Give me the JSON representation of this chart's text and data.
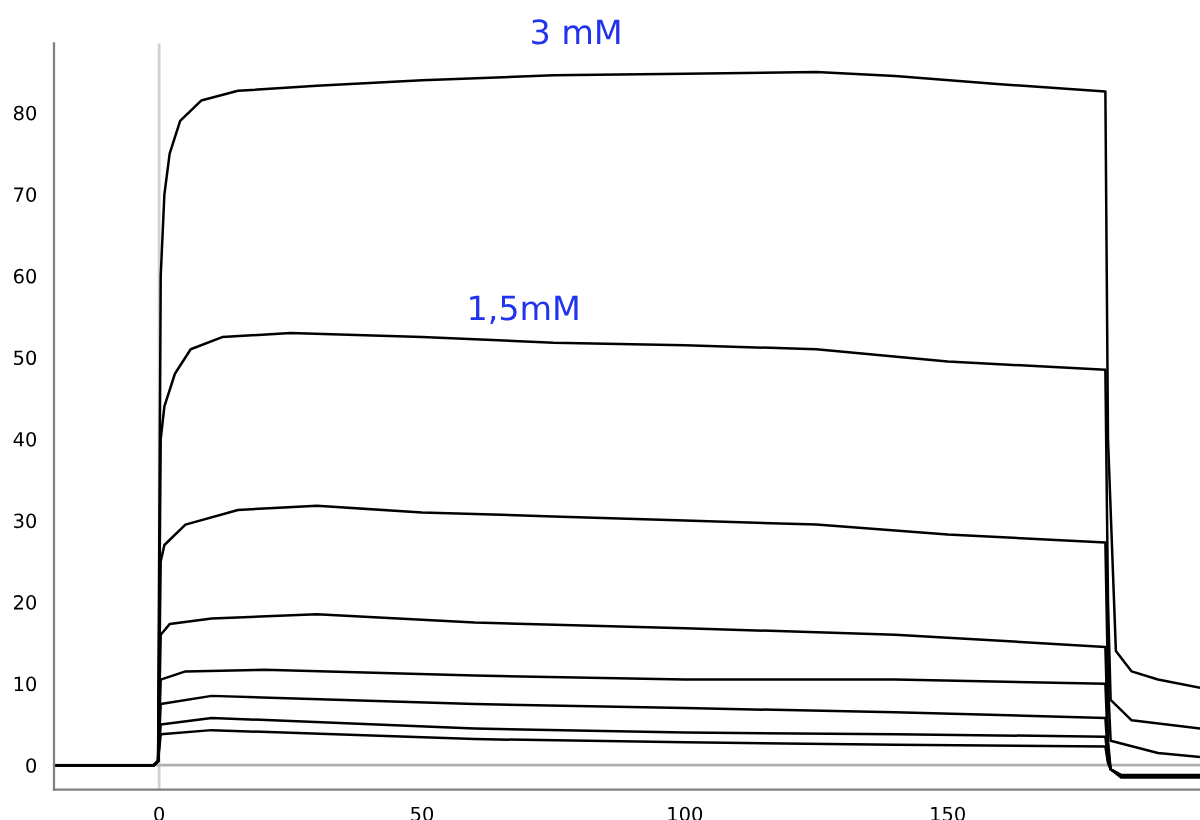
{
  "chart_data": {
    "type": "line",
    "xlim": [
      -20,
      198
    ],
    "ylim": [
      -3,
      88.5
    ],
    "xticks": [
      0,
      50,
      100,
      150
    ],
    "yticks": [
      0,
      10,
      20,
      30,
      40,
      50,
      60,
      70,
      80
    ],
    "grid": false,
    "legend": false,
    "marker": "none",
    "line_style": "solid",
    "annotations": [
      "3 mM",
      "1,5mM"
    ],
    "ref_lines": [
      {
        "axis": "x",
        "value": 0,
        "color": "#d0d0d0"
      },
      {
        "axis": "y",
        "value": 0,
        "color": "#b0b0b0"
      }
    ],
    "series": [
      {
        "color": "#000000",
        "x": [
          -20,
          -1,
          -0.2,
          0.3,
          1,
          2,
          4,
          8,
          15,
          30,
          50,
          75,
          100,
          125,
          140,
          160,
          180,
          180.5,
          182,
          185,
          190,
          198
        ],
        "values": [
          0,
          0,
          0.5,
          60,
          70,
          75,
          79,
          81.5,
          82.7,
          83.3,
          84,
          84.6,
          84.8,
          85,
          84.5,
          83.5,
          82.6,
          40,
          14,
          11.5,
          10.5,
          9.5
        ]
      },
      {
        "color": "#000000",
        "x": [
          -20,
          -1,
          -0.2,
          0.3,
          1,
          3,
          6,
          12,
          25,
          50,
          75,
          100,
          125,
          150,
          180,
          180.5,
          181,
          185,
          198
        ],
        "values": [
          0,
          0,
          0.5,
          40,
          44,
          48,
          51,
          52.5,
          53,
          52.5,
          51.8,
          51.5,
          51,
          49.5,
          48.5,
          20,
          8,
          5.5,
          4.5
        ]
      },
      {
        "color": "#000000",
        "x": [
          -20,
          -1,
          -0.2,
          0.3,
          1,
          5,
          15,
          30,
          50,
          75,
          100,
          125,
          150,
          180,
          180.5,
          181,
          190,
          198
        ],
        "values": [
          0,
          0,
          0.5,
          25,
          27,
          29.5,
          31.3,
          31.8,
          31,
          30.5,
          30,
          29.5,
          28.3,
          27.3,
          10,
          3,
          1.5,
          1
        ]
      },
      {
        "color": "#000000",
        "x": [
          -20,
          -1,
          -0.2,
          0.3,
          2,
          10,
          30,
          60,
          100,
          140,
          180,
          180.5,
          181,
          183,
          198
        ],
        "values": [
          0,
          0,
          0.5,
          16,
          17.3,
          18,
          18.5,
          17.5,
          16.8,
          16,
          14.5,
          3,
          -0.5,
          -1.2,
          -1.2
        ]
      },
      {
        "color": "#000000",
        "x": [
          -20,
          -1,
          -0.2,
          0.3,
          5,
          20,
          60,
          100,
          140,
          180,
          180.5,
          181,
          183,
          198
        ],
        "values": [
          0,
          0,
          0.5,
          10.5,
          11.5,
          11.7,
          11,
          10.5,
          10.5,
          10,
          2,
          -0.5,
          -1.2,
          -1.3
        ]
      },
      {
        "color": "#000000",
        "x": [
          -20,
          -1,
          -0.2,
          0.3,
          10,
          60,
          100,
          140,
          180,
          180.5,
          181,
          183,
          198
        ],
        "values": [
          0,
          0,
          0.5,
          7.5,
          8.5,
          7.5,
          7,
          6.5,
          5.8,
          1,
          -0.5,
          -1.3,
          -1.3
        ]
      },
      {
        "color": "#000000",
        "x": [
          -20,
          -1,
          -0.2,
          0.3,
          10,
          60,
          100,
          140,
          180,
          180.5,
          181,
          183,
          198
        ],
        "values": [
          0,
          0,
          0.5,
          5,
          5.8,
          4.5,
          4,
          3.8,
          3.5,
          0.5,
          -0.5,
          -1.4,
          -1.4
        ]
      },
      {
        "color": "#000000",
        "x": [
          -20,
          -1,
          -0.2,
          0.3,
          10,
          60,
          100,
          140,
          180,
          180.5,
          181,
          183,
          198
        ],
        "values": [
          0,
          0,
          0.5,
          3.8,
          4.3,
          3.2,
          2.8,
          2.5,
          2.3,
          0.3,
          -0.5,
          -1.5,
          -1.5
        ]
      }
    ]
  }
}
